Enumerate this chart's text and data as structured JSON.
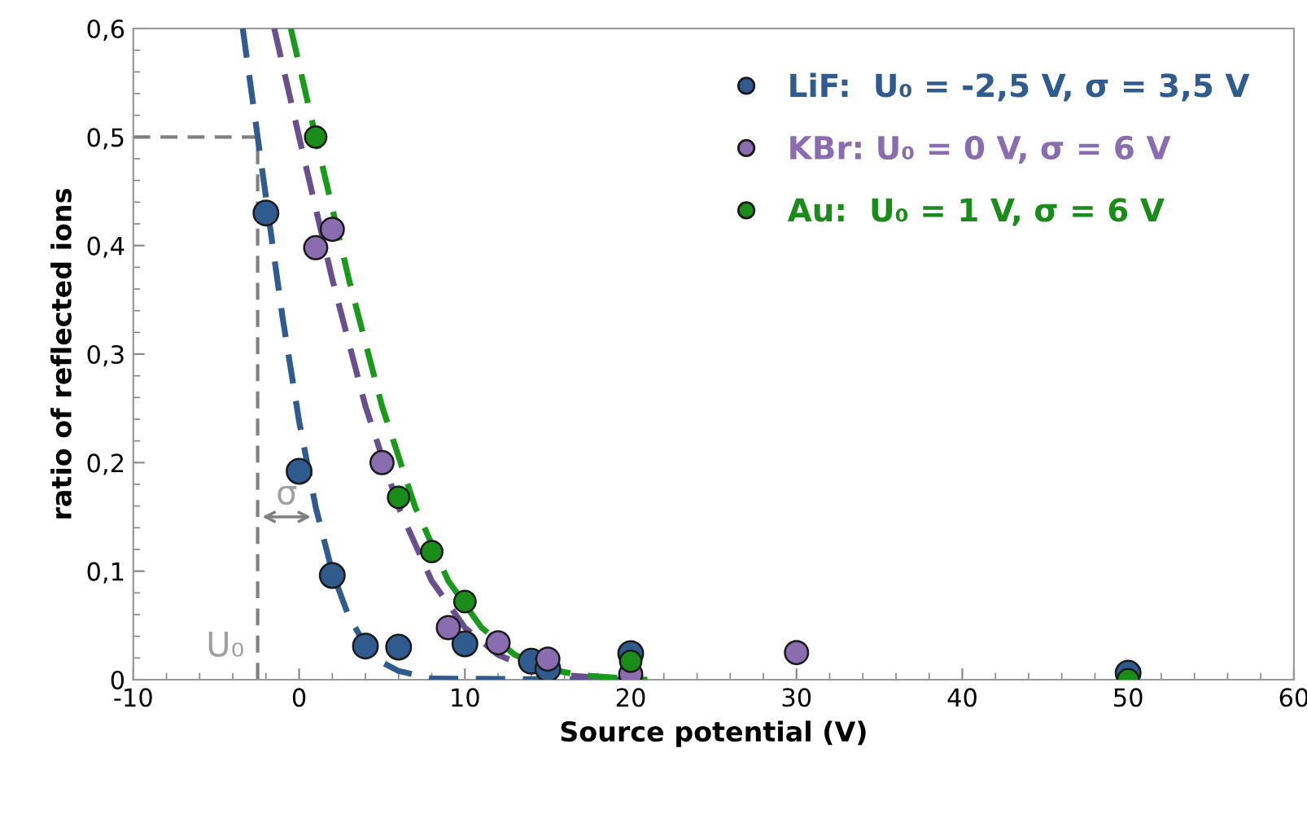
{
  "chart_data": {
    "type": "scatter",
    "xlabel": "Source potential (V)",
    "ylabel": "ratio of reflected ions",
    "xlim": [
      -10,
      60
    ],
    "xticks": [
      -10,
      0,
      10,
      20,
      30,
      40,
      50,
      60
    ],
    "ylim": [
      0,
      0.6
    ],
    "yticks": [
      0,
      {
        "value": 0.1,
        "label": "0,1"
      },
      {
        "value": 0.2,
        "label": "0,2"
      },
      {
        "value": 0.3,
        "label": "0,3"
      },
      {
        "value": 0.4,
        "label": "0,4"
      },
      {
        "value": 0.5,
        "label": "0,5"
      },
      {
        "value": 0.6,
        "label": "0,6"
      }
    ],
    "grid": false,
    "legend": "top right",
    "marker": "circle",
    "series": [
      {
        "name": "LiF:  U₀ = -2,5 V, σ = 3,5 V",
        "color": "#2f5b8f",
        "x": [
          -2,
          0,
          2,
          4,
          6,
          10,
          14,
          15,
          20,
          50
        ],
        "values": [
          0.43,
          0.192,
          0.096,
          0.031,
          0.03,
          0.033,
          0.017,
          0.01,
          0.024,
          0.006
        ]
      },
      {
        "name": "KBr: U₀ = 0 V, σ = 6 V",
        "color": "#8a6cb0",
        "x": [
          1,
          2,
          5,
          9,
          10,
          12,
          15,
          20,
          30
        ],
        "values": [
          0.398,
          0.415,
          0.2,
          0.048,
          null,
          0.034,
          0.019,
          0.005,
          0.025
        ]
      },
      {
        "name": "Au:  U₀ = 1 V, σ = 6 V",
        "color": "#1a8c1a",
        "x": [
          1,
          6,
          8,
          10,
          20,
          50
        ],
        "values": [
          0.5,
          0.168,
          0.118,
          0.072,
          0.017,
          0
        ]
      },
      {
        "type": "line",
        "line_style": "dashed",
        "marker": "none",
        "color": "#2f5b8f",
        "x": [
          -3.4,
          -2.5,
          -1,
          0,
          1,
          2,
          3,
          4,
          5,
          6,
          8,
          20
        ],
        "values": [
          0.6,
          0.5,
          0.334,
          0.238,
          0.159,
          0.099,
          0.058,
          0.032,
          0.016,
          0.008,
          0.001,
          0
        ]
      },
      {
        "type": "line",
        "line_style": "dashed",
        "marker": "none",
        "color": "#6a4f8f",
        "x": [
          -1.5,
          0,
          2,
          4,
          6,
          8,
          10,
          12,
          14,
          16,
          20
        ],
        "values": [
          0.6,
          0.5,
          0.369,
          0.252,
          0.159,
          0.091,
          0.048,
          0.023,
          0.01,
          0.004,
          0
        ]
      },
      {
        "type": "line",
        "line_style": "dashed",
        "marker": "none",
        "color": "#1a9a1a",
        "x": [
          -0.5,
          1,
          3,
          5,
          7,
          9,
          11,
          13,
          15,
          17,
          21
        ],
        "values": [
          0.6,
          0.5,
          0.369,
          0.252,
          0.159,
          0.091,
          0.048,
          0.023,
          0.01,
          0.004,
          0
        ]
      }
    ],
    "ref_lines": [
      {
        "axis": "x",
        "value": -2.5,
        "label": "U₀",
        "color": "#808080",
        "line_style": "dashed"
      },
      {
        "axis": "y",
        "value": 0.5,
        "color": "#808080",
        "line_style": "dashed"
      }
    ],
    "annotations": [
      {
        "text": "σ",
        "x": 1,
        "y": 0.15
      }
    ]
  }
}
